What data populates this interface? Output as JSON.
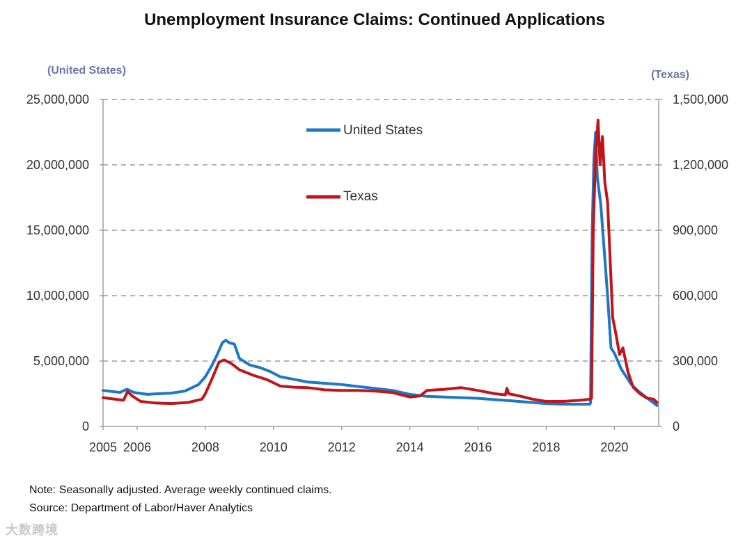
{
  "chart_data": {
    "type": "line",
    "title": "Unemployment Insurance Claims: Continued Applications",
    "left_axis_label": "(United States)",
    "right_axis_label": "(Texas)",
    "xlim": [
      2005,
      2021.3
    ],
    "x_ticks": [
      2005,
      2006,
      2008,
      2010,
      2012,
      2014,
      2016,
      2018,
      2020
    ],
    "y_left_lim": [
      0,
      25000000
    ],
    "y_left_ticks": [
      "0",
      "5,000,000",
      "10,000,000",
      "15,000,000",
      "20,000,000",
      "25,000,000"
    ],
    "y_right_lim": [
      0,
      1500000
    ],
    "y_right_ticks": [
      "0",
      "300,000",
      "600,000",
      "900,000",
      "1,200,000",
      "1,500,000"
    ],
    "grid": "dashed horizontal",
    "series": [
      {
        "name": "United States",
        "axis": "left",
        "color": "#1f77c8",
        "points": [
          [
            2005.0,
            2750000
          ],
          [
            2005.5,
            2600000
          ],
          [
            2005.7,
            2850000
          ],
          [
            2005.9,
            2600000
          ],
          [
            2006.3,
            2450000
          ],
          [
            2006.6,
            2500000
          ],
          [
            2007.0,
            2550000
          ],
          [
            2007.4,
            2700000
          ],
          [
            2007.8,
            3200000
          ],
          [
            2008.0,
            3800000
          ],
          [
            2008.2,
            4700000
          ],
          [
            2008.35,
            5500000
          ],
          [
            2008.5,
            6400000
          ],
          [
            2008.6,
            6600000
          ],
          [
            2008.7,
            6400000
          ],
          [
            2008.85,
            6300000
          ],
          [
            2009.0,
            5200000
          ],
          [
            2009.3,
            4700000
          ],
          [
            2009.6,
            4500000
          ],
          [
            2009.9,
            4200000
          ],
          [
            2010.2,
            3800000
          ],
          [
            2010.6,
            3600000
          ],
          [
            2011.0,
            3400000
          ],
          [
            2011.5,
            3300000
          ],
          [
            2012.0,
            3200000
          ],
          [
            2012.5,
            3050000
          ],
          [
            2013.0,
            2900000
          ],
          [
            2013.5,
            2750000
          ],
          [
            2014.0,
            2450000
          ],
          [
            2014.5,
            2300000
          ],
          [
            2015.0,
            2250000
          ],
          [
            2015.5,
            2200000
          ],
          [
            2016.0,
            2150000
          ],
          [
            2016.5,
            2050000
          ],
          [
            2017.0,
            1950000
          ],
          [
            2017.5,
            1850000
          ],
          [
            2018.0,
            1750000
          ],
          [
            2018.5,
            1700000
          ],
          [
            2019.0,
            1700000
          ],
          [
            2019.28,
            1700000
          ],
          [
            2019.3,
            1800000
          ],
          [
            2019.35,
            15000000
          ],
          [
            2019.4,
            20500000
          ],
          [
            2019.45,
            22500000
          ],
          [
            2019.5,
            19000000
          ],
          [
            2019.6,
            17000000
          ],
          [
            2019.7,
            13500000
          ],
          [
            2019.8,
            10000000
          ],
          [
            2019.9,
            6000000
          ],
          [
            2020.0,
            5600000
          ],
          [
            2020.1,
            5000000
          ],
          [
            2020.2,
            4400000
          ],
          [
            2020.35,
            3800000
          ],
          [
            2020.5,
            3200000
          ],
          [
            2020.7,
            2700000
          ],
          [
            2020.9,
            2300000
          ],
          [
            2021.1,
            1900000
          ],
          [
            2021.25,
            1600000
          ]
        ]
      },
      {
        "name": "Texas",
        "axis": "right",
        "color": "#c0151b",
        "points": [
          [
            2005.0,
            132000
          ],
          [
            2005.3,
            126000
          ],
          [
            2005.6,
            120000
          ],
          [
            2005.72,
            160000
          ],
          [
            2005.85,
            140000
          ],
          [
            2006.1,
            115000
          ],
          [
            2006.5,
            108000
          ],
          [
            2007.0,
            105000
          ],
          [
            2007.5,
            110000
          ],
          [
            2007.9,
            125000
          ],
          [
            2008.0,
            150000
          ],
          [
            2008.2,
            220000
          ],
          [
            2008.4,
            295000
          ],
          [
            2008.55,
            305000
          ],
          [
            2008.75,
            290000
          ],
          [
            2009.0,
            260000
          ],
          [
            2009.4,
            235000
          ],
          [
            2009.8,
            215000
          ],
          [
            2010.2,
            185000
          ],
          [
            2010.6,
            180000
          ],
          [
            2011.0,
            178000
          ],
          [
            2011.5,
            168000
          ],
          [
            2012.0,
            165000
          ],
          [
            2012.5,
            165000
          ],
          [
            2013.0,
            162000
          ],
          [
            2013.5,
            155000
          ],
          [
            2014.0,
            135000
          ],
          [
            2014.3,
            140000
          ],
          [
            2014.5,
            165000
          ],
          [
            2015.0,
            170000
          ],
          [
            2015.5,
            178000
          ],
          [
            2016.0,
            165000
          ],
          [
            2016.5,
            150000
          ],
          [
            2016.8,
            145000
          ],
          [
            2016.85,
            175000
          ],
          [
            2016.9,
            150000
          ],
          [
            2017.2,
            140000
          ],
          [
            2017.6,
            125000
          ],
          [
            2018.0,
            115000
          ],
          [
            2018.5,
            115000
          ],
          [
            2019.0,
            120000
          ],
          [
            2019.28,
            125000
          ],
          [
            2019.33,
            130000
          ],
          [
            2019.38,
            900000
          ],
          [
            2019.45,
            1250000
          ],
          [
            2019.52,
            1405000
          ],
          [
            2019.58,
            1200000
          ],
          [
            2019.65,
            1330000
          ],
          [
            2019.72,
            1120000
          ],
          [
            2019.8,
            1030000
          ],
          [
            2019.88,
            750000
          ],
          [
            2019.95,
            500000
          ],
          [
            2020.05,
            420000
          ],
          [
            2020.15,
            330000
          ],
          [
            2020.25,
            360000
          ],
          [
            2020.4,
            250000
          ],
          [
            2020.55,
            180000
          ],
          [
            2020.75,
            150000
          ],
          [
            2020.95,
            130000
          ],
          [
            2021.15,
            125000
          ],
          [
            2021.25,
            110000
          ]
        ]
      }
    ],
    "legend_position": "top-center"
  },
  "notes": {
    "line1": "Note: Seasonally adjusted. Average weekly continued claims.",
    "line2": "Source: Department of Labor/Haver Analytics"
  },
  "watermark": "大数跨境"
}
